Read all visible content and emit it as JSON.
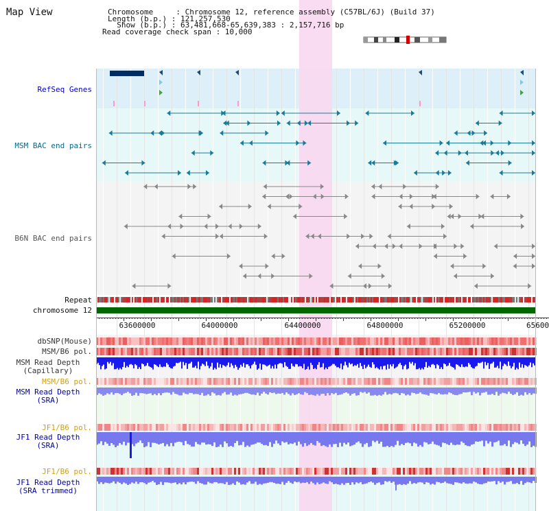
{
  "header": {
    "view_title": "Map View",
    "info_lines": [
      "Chromosome     : Chromosome 12, reference assembly (C57BL/6J) (Build 37)",
      "Length (b.p.) : 121,257,530",
      "  Show (b.p.) : 63,481,668-65,639,383 : 2,157,716 bp",
      "Read coverage check span : 10,000"
    ]
  },
  "tracks": {
    "refseq_genes": "RefSeq Genes",
    "msm_bac": "MSM BAC end pairs",
    "b6n_bac": "B6N BAC end pairs",
    "repeat": "Repeat",
    "chromosome": "chromosome 12",
    "dbsnp": "dbSNP(Mouse)",
    "msm_b6_pol_1": "MSM/B6 pol.",
    "msm_read_depth_cap": [
      "MSM Read Depth",
      "(Capillary)"
    ],
    "msm_b6_pol_2": "MSM/B6 pol.",
    "msm_read_depth_sra": [
      "MSM Read Depth",
      "(SRA)"
    ],
    "jf1_b6_pol_1": "JF1/B6 pol.",
    "jf1_read_depth_sra": [
      "JF1 Read Depth",
      "(SRA)"
    ],
    "jf1_b6_pol_2": "JF1/B6 pol.",
    "jf1_read_depth_trim": [
      "JF1 Read Depth",
      "(SRA trimmed)"
    ]
  },
  "axis": {
    "ticks": [
      "63600000",
      "64000000",
      "64400000",
      "64800000",
      "65200000",
      "65600"
    ]
  },
  "colors": {
    "refseq_label": "#0000cc",
    "msm_label": "#006a8e",
    "b6n_label": "#555555",
    "pol_orange": "#d4a000",
    "depth_blue": "#0000aa",
    "highlight": "#f8d8f0"
  }
}
